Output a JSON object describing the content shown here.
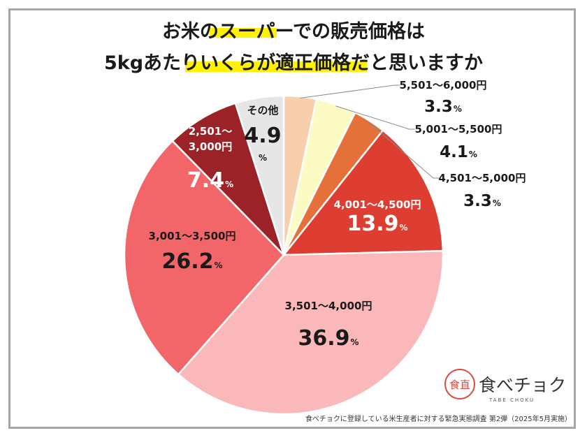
{
  "title": {
    "line1": "お米のスーパーでの販売価格は",
    "line2": "5kgあたりいくらが適正価格だと思いますか"
  },
  "chart_data": {
    "type": "pie",
    "title": "お米のスーパーでの販売価格は5kgあたりいくらが適正価格だと思いますか",
    "unit": "%",
    "start": "12 o'clock",
    "direction": "clockwise",
    "slices": [
      {
        "label": "5,501〜6,000円",
        "value": 3.3,
        "color": "#f8cfac",
        "label_color": "#1a1a1a"
      },
      {
        "label": "5,001〜5,500円",
        "value": 4.1,
        "color": "#fdfbc4",
        "label_color": "#1a1a1a"
      },
      {
        "label": "4,501〜5,000円",
        "value": 3.3,
        "color": "#e4703a",
        "label_color": "#1a1a1a"
      },
      {
        "label": "4,001〜4,500円",
        "value": 13.9,
        "color": "#de3e31",
        "label_color": "#ffffff"
      },
      {
        "label": "3,501〜4,000円",
        "value": 36.9,
        "color": "#fbb8bb",
        "label_color": "#1a1a1a"
      },
      {
        "label": "3,001〜3,500円",
        "value": 26.2,
        "color": "#f26568",
        "label_color": "#1a1a1a"
      },
      {
        "label": "2,501〜3,000円",
        "value": 7.4,
        "color": "#9b2226",
        "label_color": "#ffffff"
      },
      {
        "label": "その他",
        "value": 4.9,
        "color": "#e6e6e6",
        "label_color": "#1a1a1a"
      }
    ]
  },
  "highlight_color": "#fff200",
  "footnote": "食べチョクに登録している米生産者に対する緊急実態調査 第2弾（2025年5月実施）",
  "logo": {
    "name": "食べチョク",
    "sub": "TABE CHOKU",
    "seal": "食直"
  }
}
